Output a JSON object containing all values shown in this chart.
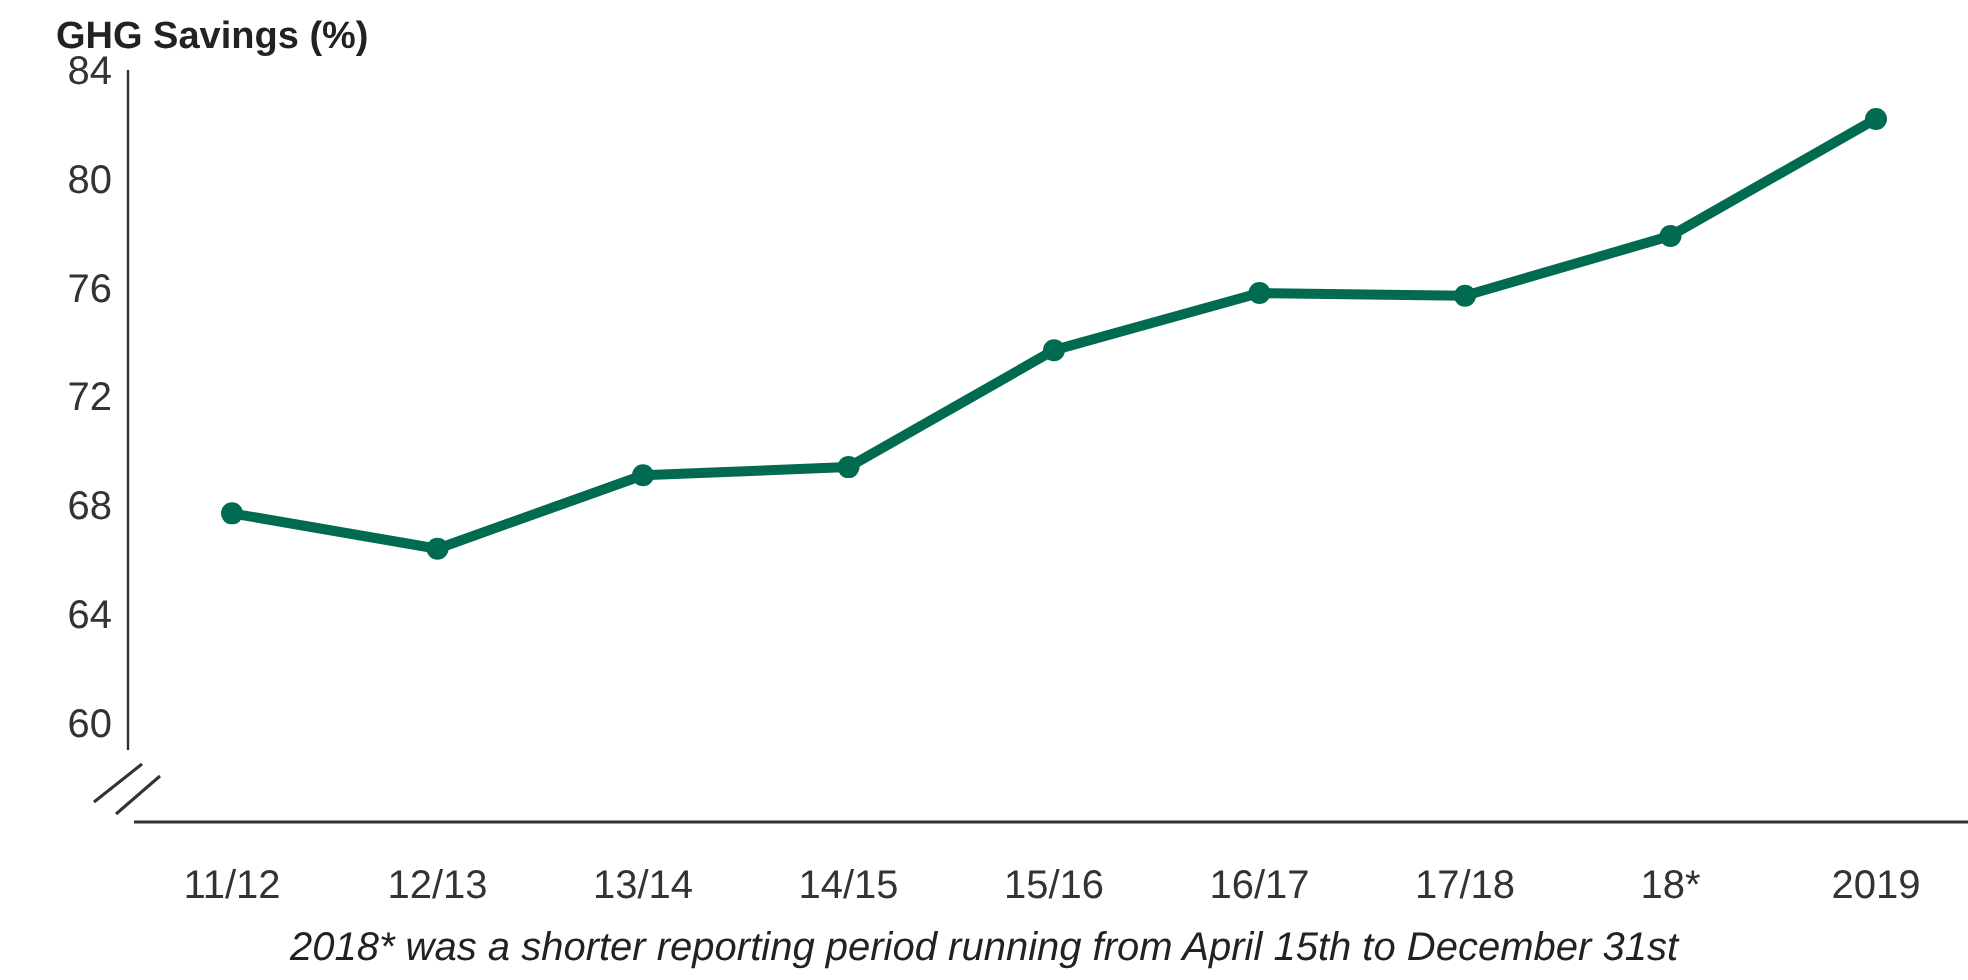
{
  "chart_data": {
    "type": "line",
    "ylabel": "GHG Savings (%)",
    "categories": [
      "11/12",
      "12/13",
      "13/14",
      "14/15",
      "15/16",
      "16/17",
      "17/18",
      "18*",
      "2019"
    ],
    "series": [
      {
        "color": "#006b50",
        "values": [
          67.7,
          66.4,
          69.1,
          69.4,
          73.7,
          75.8,
          75.7,
          77.9,
          82.2
        ]
      }
    ],
    "ylim": [
      59,
      84
    ],
    "yticks": [
      60,
      64,
      68,
      72,
      76,
      80,
      84
    ],
    "grid": false,
    "marker": "circle",
    "line_style": "solid",
    "annotations": [
      "2018* was a shorter reporting period running from April 15th to December 31st"
    ]
  }
}
